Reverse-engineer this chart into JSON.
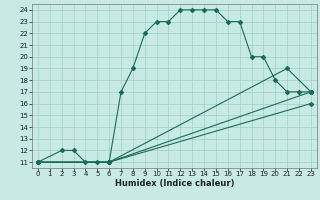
{
  "title": "",
  "xlabel": "Humidex (Indice chaleur)",
  "bg_color": "#c8eae4",
  "line_color": "#1a6b5a",
  "grid_color": "#a0cfc8",
  "xlim": [
    -0.5,
    23.5
  ],
  "ylim": [
    10.5,
    24.5
  ],
  "xticks": [
    0,
    1,
    2,
    3,
    4,
    5,
    6,
    7,
    8,
    9,
    10,
    11,
    12,
    13,
    14,
    15,
    16,
    17,
    18,
    19,
    20,
    21,
    22,
    23
  ],
  "yticks": [
    11,
    12,
    13,
    14,
    15,
    16,
    17,
    18,
    19,
    20,
    21,
    22,
    23,
    24
  ],
  "series1_x": [
    0,
    2,
    3,
    4,
    5,
    6,
    7,
    8,
    9,
    10,
    11,
    12,
    13,
    14,
    15,
    16,
    17,
    18,
    19,
    20,
    21,
    22,
    23
  ],
  "series1_y": [
    11,
    12,
    12,
    11,
    11,
    11,
    17,
    19,
    22,
    23,
    23,
    24,
    24,
    24,
    24,
    23,
    23,
    20,
    20,
    18,
    17,
    17,
    17
  ],
  "series2_x": [
    0,
    6,
    21,
    23
  ],
  "series2_y": [
    11,
    11,
    19,
    17
  ],
  "series3_x": [
    0,
    6,
    23
  ],
  "series3_y": [
    11,
    11,
    17
  ],
  "series4_x": [
    0,
    6,
    23
  ],
  "series4_y": [
    11,
    11,
    16
  ],
  "xlabel_fontsize": 6,
  "tick_fontsize": 5,
  "linewidth": 0.8,
  "markersize": 2.0
}
